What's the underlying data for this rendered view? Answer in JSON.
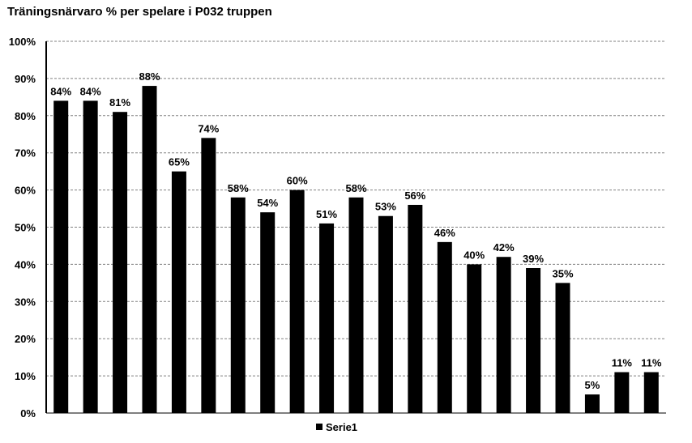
{
  "colors": {
    "bar": "#000000",
    "grid": "#808080",
    "axis": "#000000",
    "background": "#ffffff"
  },
  "chart_data": {
    "type": "bar",
    "title": "Träningsnärvaro % per spelare i P032 truppen",
    "xlabel": "",
    "ylabel": "",
    "ylim": [
      0,
      100
    ],
    "yticks": [
      "0%",
      "10%",
      "20%",
      "30%",
      "40%",
      "50%",
      "60%",
      "70%",
      "80%",
      "90%",
      "100%"
    ],
    "grid": true,
    "grid_style": "dashed",
    "legend_position": "bottom",
    "series": [
      {
        "name": "Serie1",
        "values": [
          84,
          84,
          81,
          88,
          65,
          74,
          58,
          54,
          60,
          51,
          58,
          53,
          56,
          46,
          40,
          42,
          39,
          35,
          5,
          11,
          11
        ],
        "labels": [
          "84%",
          "84%",
          "81%",
          "88%",
          "65%",
          "74%",
          "58%",
          "54%",
          "60%",
          "51%",
          "58%",
          "53%",
          "56%",
          "46%",
          "40%",
          "42%",
          "39%",
          "35%",
          "5%",
          "11%",
          "11%"
        ]
      }
    ]
  }
}
